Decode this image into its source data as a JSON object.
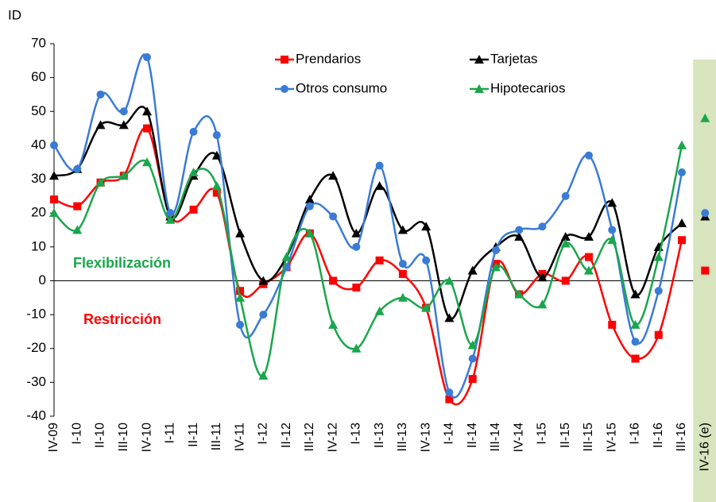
{
  "chart_data": {
    "type": "line",
    "y_label": "ID",
    "categories": [
      "IV-09",
      "I-10",
      "II-10",
      "III-10",
      "IV-10",
      "I-11",
      "II-11",
      "III-11",
      "IV-11",
      "I-12",
      "II-12",
      "III-12",
      "IV-12",
      "I-13",
      "II-13",
      "III-13",
      "IV-13",
      "I-14",
      "II-14",
      "III-14",
      "IV-14",
      "I-15",
      "II-15",
      "III-15",
      "IV-15",
      "I-16",
      "II-16",
      "III-16",
      "IV-16 (e)"
    ],
    "estimate_category_index": 28,
    "estimate_band_color": "#d7e4bd",
    "series": [
      {
        "name": "Prendarios",
        "color": "#ff0000",
        "marker": "square",
        "values": [
          24,
          22,
          29,
          31,
          45,
          19,
          21,
          26,
          -3,
          -1,
          4,
          14,
          0,
          -2,
          6,
          2,
          -8,
          -35,
          -29,
          5,
          -4,
          2,
          0,
          7,
          -13,
          -23,
          -16,
          12,
          3
        ]
      },
      {
        "name": "Tarjetas",
        "color": "#000000",
        "marker": "triangle",
        "values": [
          31,
          33,
          46,
          46,
          50,
          19,
          31,
          37,
          14,
          0,
          7,
          24,
          31,
          14,
          28,
          15,
          16,
          -11,
          3,
          10,
          13,
          1,
          13,
          13,
          23,
          -4,
          10,
          17,
          19
        ]
      },
      {
        "name": "Otros consumo",
        "color": "#3a7bd5",
        "marker": "circle",
        "values": [
          40,
          33,
          55,
          50,
          66,
          20,
          44,
          43,
          -13,
          -10,
          4,
          22,
          19,
          10,
          34,
          5,
          6,
          -33,
          -23,
          9,
          15,
          16,
          25,
          37,
          15,
          -18,
          -3,
          32,
          20
        ]
      },
      {
        "name": "Hipotecarios",
        "color": "#1aa64b",
        "marker": "triangle",
        "values": [
          20,
          15,
          29,
          31,
          35,
          18,
          32,
          28,
          -5,
          -28,
          7,
          14,
          -13,
          -20,
          -9,
          -5,
          -8,
          0,
          -19,
          4,
          -4,
          -7,
          11,
          3,
          12,
          -13,
          7,
          40,
          48
        ]
      }
    ],
    "ylim": [
      -40,
      70
    ],
    "yticks": [
      -40,
      -30,
      -20,
      -10,
      0,
      10,
      20,
      30,
      40,
      50,
      60,
      70
    ],
    "annotations": [
      {
        "text": "Flexibilización",
        "color": "#1aa64b"
      },
      {
        "text": "Restricción",
        "color": "#ff0000"
      }
    ]
  }
}
